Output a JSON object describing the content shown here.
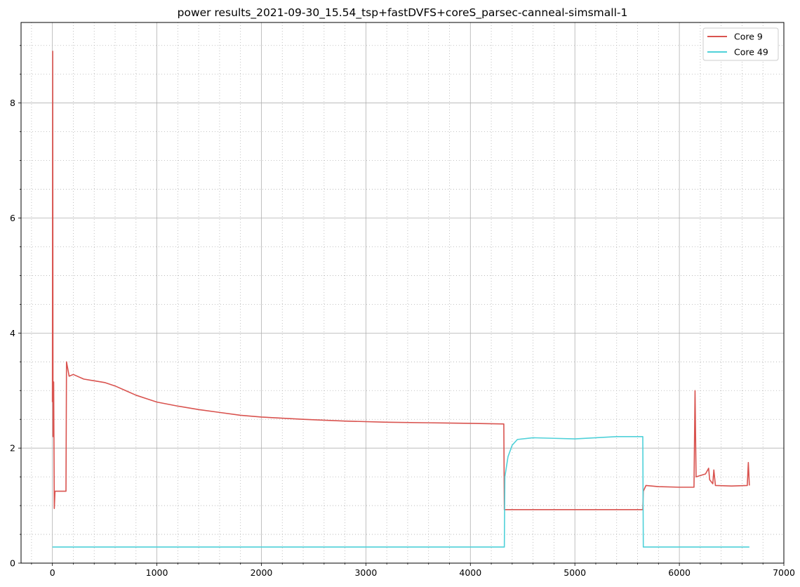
{
  "chart_data": {
    "type": "line",
    "title": "power results_2021-09-30_15.54_tsp+fastDVFS+coreS_parsec-canneal-simsmall-1",
    "xlabel": "",
    "ylabel": "",
    "xlim": [
      -300,
      7000
    ],
    "ylim": [
      0,
      9.4
    ],
    "x_ticks": [
      0,
      1000,
      2000,
      3000,
      4000,
      5000,
      6000,
      7000
    ],
    "x_tick_labels": [
      "0",
      "1000",
      "2000",
      "3000",
      "4000",
      "5000",
      "6000",
      "7000"
    ],
    "y_ticks": [
      0,
      2,
      4,
      6,
      8
    ],
    "y_tick_labels": [
      "0",
      "2",
      "4",
      "6",
      "8"
    ],
    "grid": "major solid, minor dotted",
    "legend_position": "top-right",
    "series": [
      {
        "name": "Core 9",
        "color": "#d9534f",
        "points": [
          [
            0,
            2.8
          ],
          [
            3,
            8.9
          ],
          [
            6,
            2.2
          ],
          [
            12,
            3.15
          ],
          [
            18,
            0.95
          ],
          [
            25,
            1.25
          ],
          [
            130,
            1.25
          ],
          [
            135,
            3.5
          ],
          [
            160,
            3.25
          ],
          [
            200,
            3.28
          ],
          [
            300,
            3.2
          ],
          [
            400,
            3.17
          ],
          [
            500,
            3.14
          ],
          [
            600,
            3.08
          ],
          [
            700,
            3.0
          ],
          [
            800,
            2.92
          ],
          [
            900,
            2.86
          ],
          [
            1000,
            2.8
          ],
          [
            1200,
            2.73
          ],
          [
            1400,
            2.67
          ],
          [
            1600,
            2.62
          ],
          [
            1800,
            2.57
          ],
          [
            2000,
            2.54
          ],
          [
            2400,
            2.5
          ],
          [
            2800,
            2.47
          ],
          [
            3200,
            2.45
          ],
          [
            3600,
            2.44
          ],
          [
            4000,
            2.43
          ],
          [
            4320,
            2.42
          ],
          [
            4325,
            0.93
          ],
          [
            5650,
            0.93
          ],
          [
            5655,
            1.25
          ],
          [
            5680,
            1.35
          ],
          [
            5800,
            1.33
          ],
          [
            6000,
            1.32
          ],
          [
            6140,
            1.32
          ],
          [
            6150,
            3.0
          ],
          [
            6160,
            1.5
          ],
          [
            6250,
            1.55
          ],
          [
            6280,
            1.65
          ],
          [
            6290,
            1.45
          ],
          [
            6320,
            1.38
          ],
          [
            6330,
            1.62
          ],
          [
            6345,
            1.35
          ],
          [
            6500,
            1.34
          ],
          [
            6650,
            1.35
          ],
          [
            6660,
            1.75
          ],
          [
            6670,
            1.35
          ]
        ]
      },
      {
        "name": "Core 49",
        "color": "#4fd1d9",
        "points": [
          [
            0,
            0.28
          ],
          [
            4325,
            0.28
          ],
          [
            4330,
            1.5
          ],
          [
            4360,
            1.85
          ],
          [
            4400,
            2.05
          ],
          [
            4450,
            2.15
          ],
          [
            4600,
            2.18
          ],
          [
            4800,
            2.17
          ],
          [
            5000,
            2.16
          ],
          [
            5200,
            2.18
          ],
          [
            5400,
            2.2
          ],
          [
            5650,
            2.2
          ],
          [
            5655,
            0.28
          ],
          [
            6670,
            0.28
          ]
        ]
      }
    ]
  }
}
